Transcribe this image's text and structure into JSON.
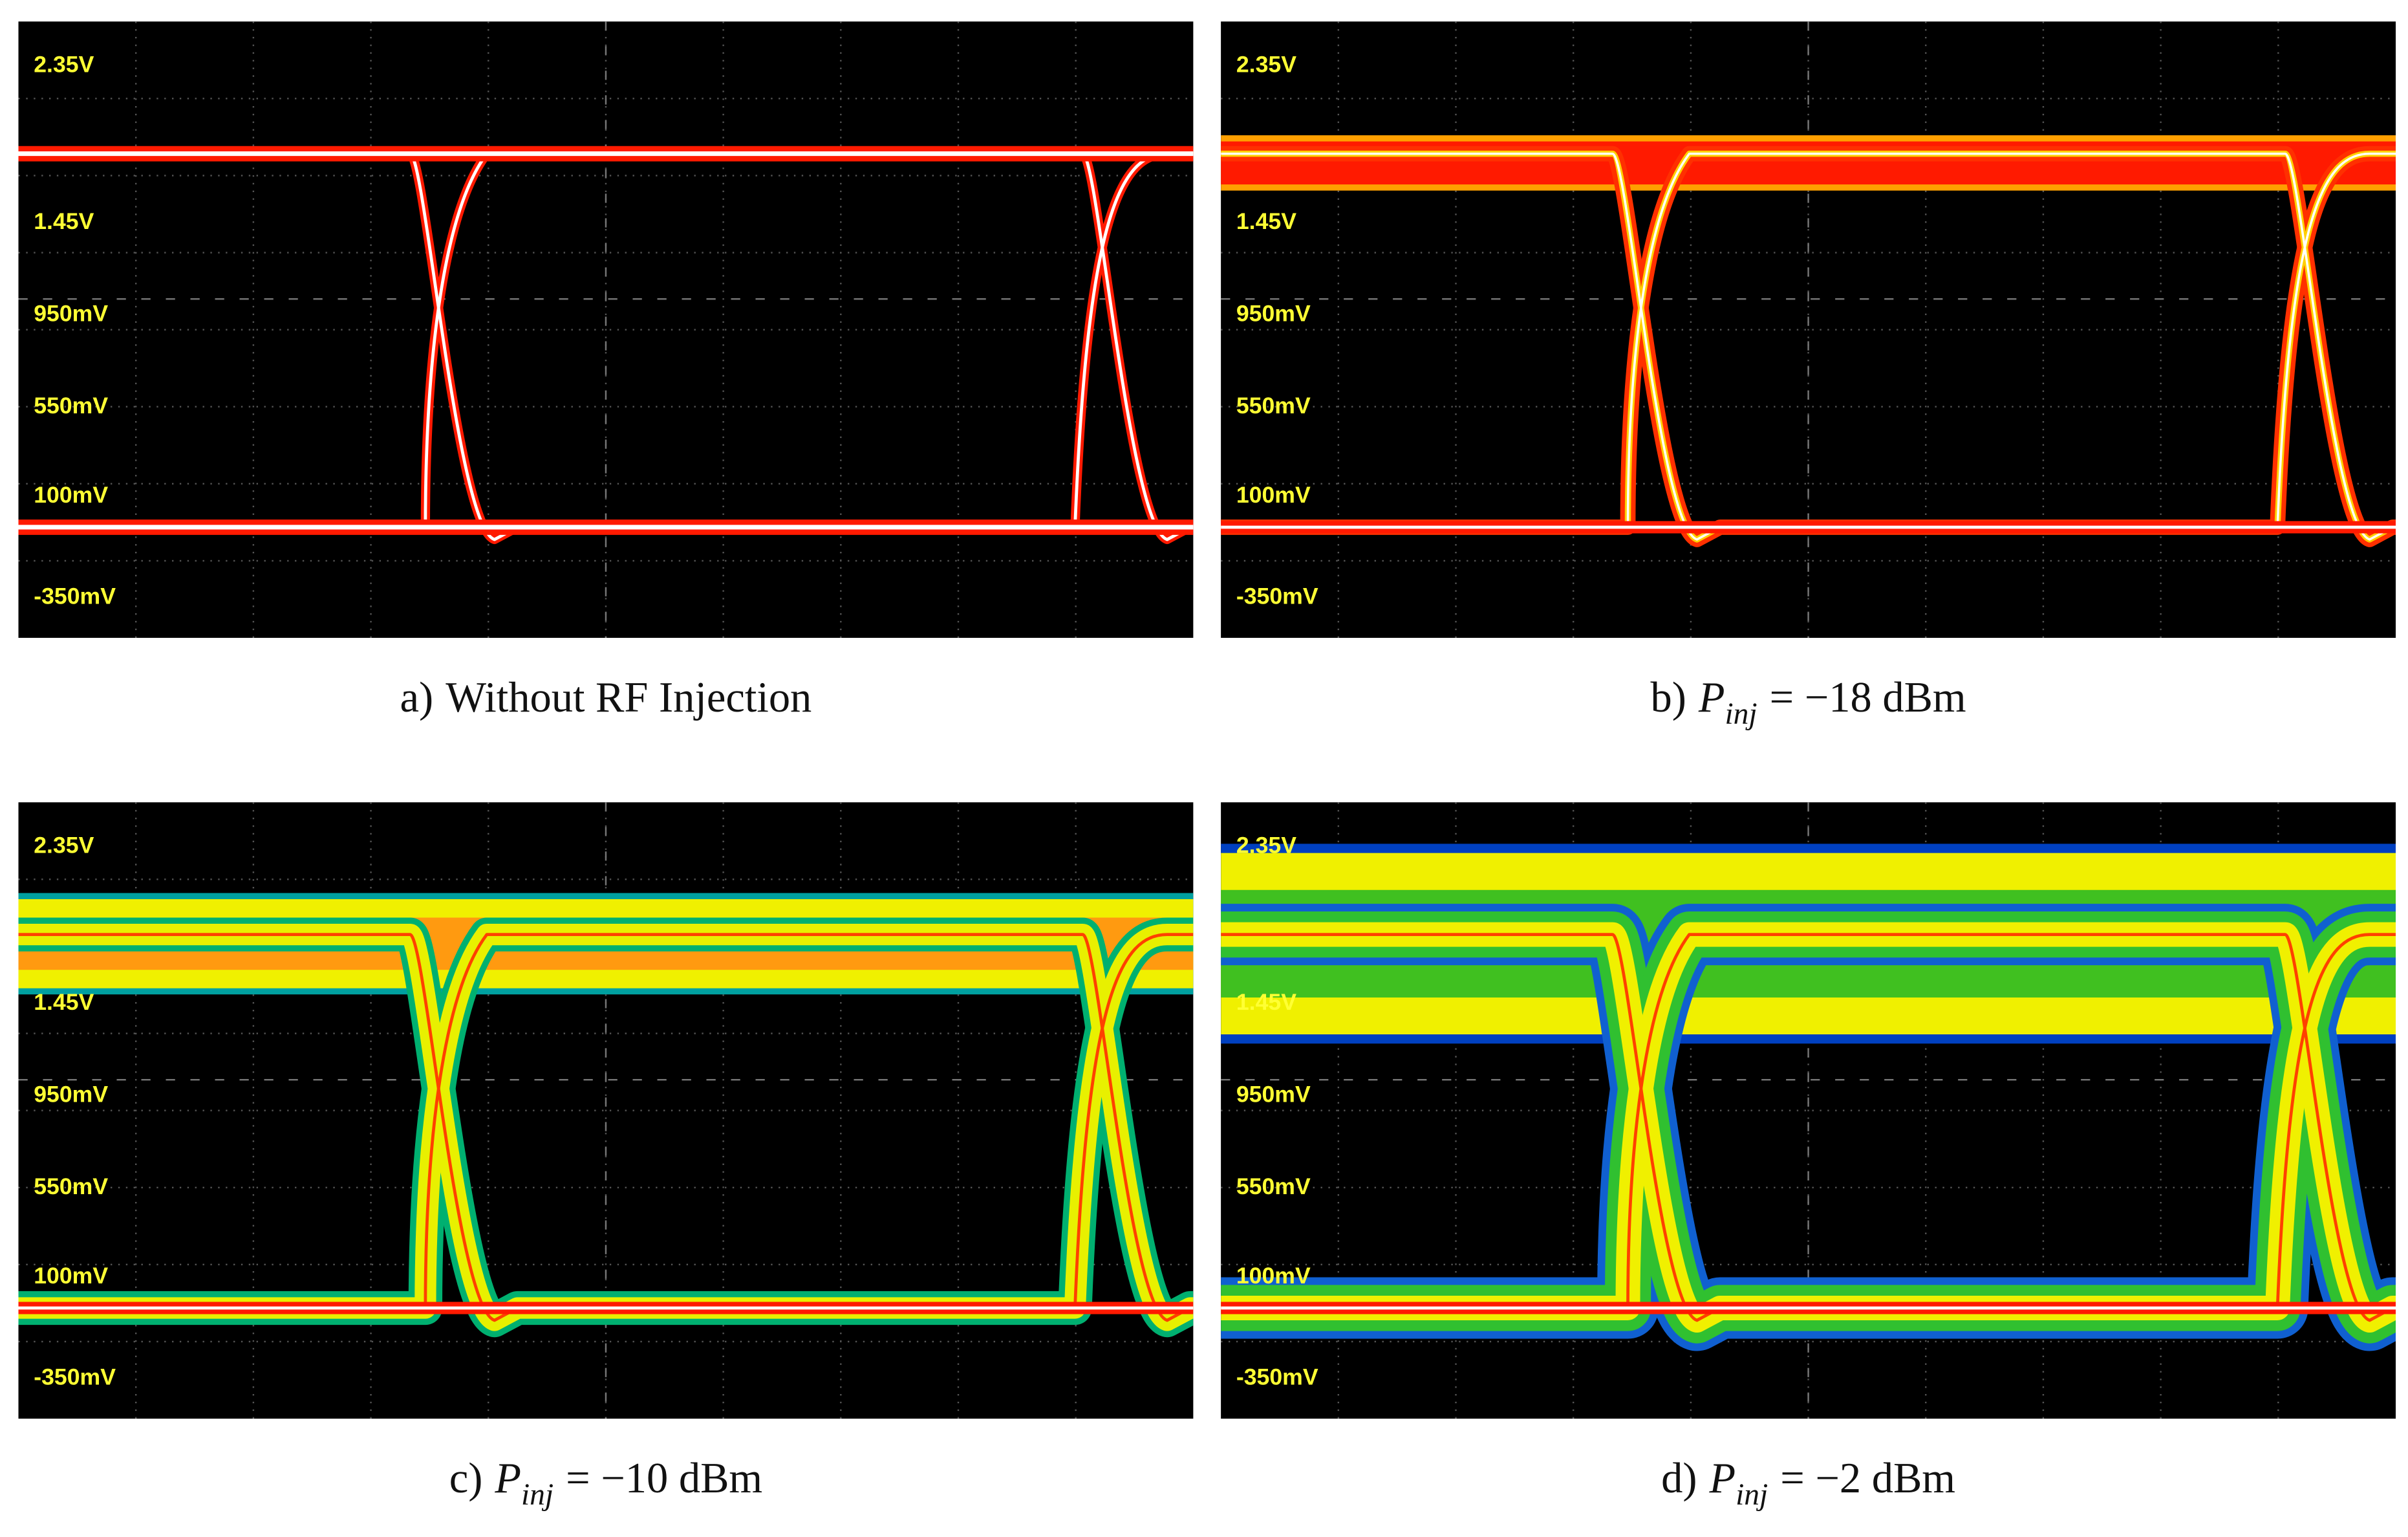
{
  "panels": [
    {
      "caption": {
        "label": "a)",
        "text": "Without RF Injection"
      },
      "y_labels": [
        "2.35V",
        "1.45V",
        "950mV",
        "550mV",
        "100mV",
        "-350mV"
      ]
    },
    {
      "caption": {
        "label": "b)",
        "symbol": "P",
        "subscript": "inj",
        "text": "= −18 dBm"
      },
      "y_labels": [
        "2.35V",
        "1.45V",
        "950mV",
        "550mV",
        "100mV",
        "-350mV"
      ]
    },
    {
      "caption": {
        "label": "c)",
        "symbol": "P",
        "subscript": "inj",
        "text": "= −10 dBm"
      },
      "y_labels": [
        "2.35V",
        "1.45V",
        "950mV",
        "550mV",
        "100mV",
        "-350mV"
      ]
    },
    {
      "caption": {
        "label": "d)",
        "symbol": "P",
        "subscript": "inj",
        "text": "= −2 dBm"
      },
      "y_labels": [
        "2.35V",
        "1.45V",
        "950mV",
        "550mV",
        "100mV",
        "-350mV"
      ]
    }
  ]
}
